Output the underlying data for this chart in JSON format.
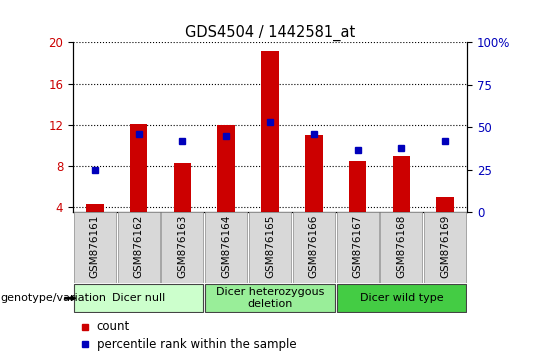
{
  "title": "GDS4504 / 1442581_at",
  "samples": [
    "GSM876161",
    "GSM876162",
    "GSM876163",
    "GSM876164",
    "GSM876165",
    "GSM876166",
    "GSM876167",
    "GSM876168",
    "GSM876169"
  ],
  "counts": [
    4.35,
    12.1,
    8.3,
    12.0,
    19.2,
    11.0,
    8.5,
    9.0,
    5.0
  ],
  "percentiles": [
    25,
    46,
    42,
    45,
    53,
    46,
    37,
    38,
    42
  ],
  "ylim_left": [
    3.5,
    20
  ],
  "ylim_right": [
    0,
    100
  ],
  "yticks_left": [
    4,
    8,
    12,
    16,
    20
  ],
  "yticks_right": [
    0,
    25,
    50,
    75,
    100
  ],
  "bar_color": "#cc0000",
  "marker_color": "#0000bb",
  "bar_bottom": 3.5,
  "groups": [
    {
      "label": "Dicer null",
      "indices": [
        0,
        1,
        2
      ],
      "color": "#ccffcc"
    },
    {
      "label": "Dicer heterozygous\ndeletion",
      "indices": [
        3,
        4,
        5
      ],
      "color": "#99ee99"
    },
    {
      "label": "Dicer wild type",
      "indices": [
        6,
        7,
        8
      ],
      "color": "#44cc44"
    }
  ],
  "legend_count_color": "#cc0000",
  "legend_marker_color": "#0000bb",
  "tick_label_color_left": "#cc0000",
  "tick_label_color_right": "#0000bb",
  "genotype_label": "genotype/variation"
}
